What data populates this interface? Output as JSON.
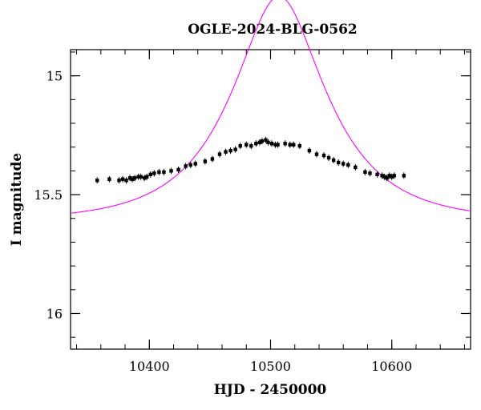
{
  "chart_data": {
    "type": "scatter",
    "title": "OGLE-2024-BLG-0562",
    "xlabel": "HJD - 2450000",
    "ylabel": "I magnitude",
    "xlim": [
      10335,
      10665
    ],
    "ylim": [
      16.15,
      14.89
    ],
    "y_inverted": true,
    "x_ticks": [
      10400,
      10500,
      10600
    ],
    "x_tick_labels": [
      "10400",
      "10500",
      "10600"
    ],
    "x_minor_step": 20,
    "y_ticks": [
      15,
      15.5,
      16
    ],
    "y_tick_labels": [
      "15",
      "15.5",
      "16"
    ],
    "y_minor_step": 0.1,
    "grid": false,
    "legend": "none",
    "colors": {
      "points": "#000000",
      "model": "#ff00ff",
      "axes": "#000000"
    },
    "series": [
      {
        "kind": "points",
        "x": [
          10357,
          10367,
          10375,
          10378,
          10381,
          10384,
          10386,
          10388,
          10391,
          10393,
          10396,
          10398,
          10401,
          10404,
          10408,
          10412,
          10418,
          10424,
          10430,
          10434,
          10438,
          10446,
          10452,
          10458,
          10463,
          10467,
          10471,
          10475,
          10480,
          10484,
          10488,
          10491,
          10493,
          10496,
          10498,
          10501,
          10504,
          10506,
          10512,
          10516,
          10519,
          10524,
          10532,
          10538,
          10544,
          10548,
          10552,
          10556,
          10560,
          10564,
          10570,
          10578,
          10582,
          10588,
          10592,
          10594,
          10596,
          10598,
          10600,
          10602,
          10610
        ],
        "y": [
          15.44,
          15.435,
          15.44,
          15.435,
          15.44,
          15.43,
          15.435,
          15.43,
          15.425,
          15.425,
          15.43,
          15.425,
          15.415,
          15.41,
          15.405,
          15.405,
          15.4,
          15.395,
          15.38,
          15.375,
          15.37,
          15.36,
          15.35,
          15.33,
          15.32,
          15.315,
          15.31,
          15.295,
          15.29,
          15.295,
          15.285,
          15.28,
          15.275,
          15.27,
          15.28,
          15.285,
          15.29,
          15.29,
          15.285,
          15.29,
          15.29,
          15.295,
          15.315,
          15.33,
          15.335,
          15.345,
          15.355,
          15.365,
          15.37,
          15.375,
          15.385,
          15.405,
          15.41,
          15.415,
          15.42,
          15.425,
          15.43,
          15.42,
          15.425,
          15.42,
          15.42
        ]
      },
      {
        "kind": "model",
        "t0": 10507,
        "tE": 70,
        "u0": 0.45,
        "baseline": 15.611
      }
    ]
  }
}
